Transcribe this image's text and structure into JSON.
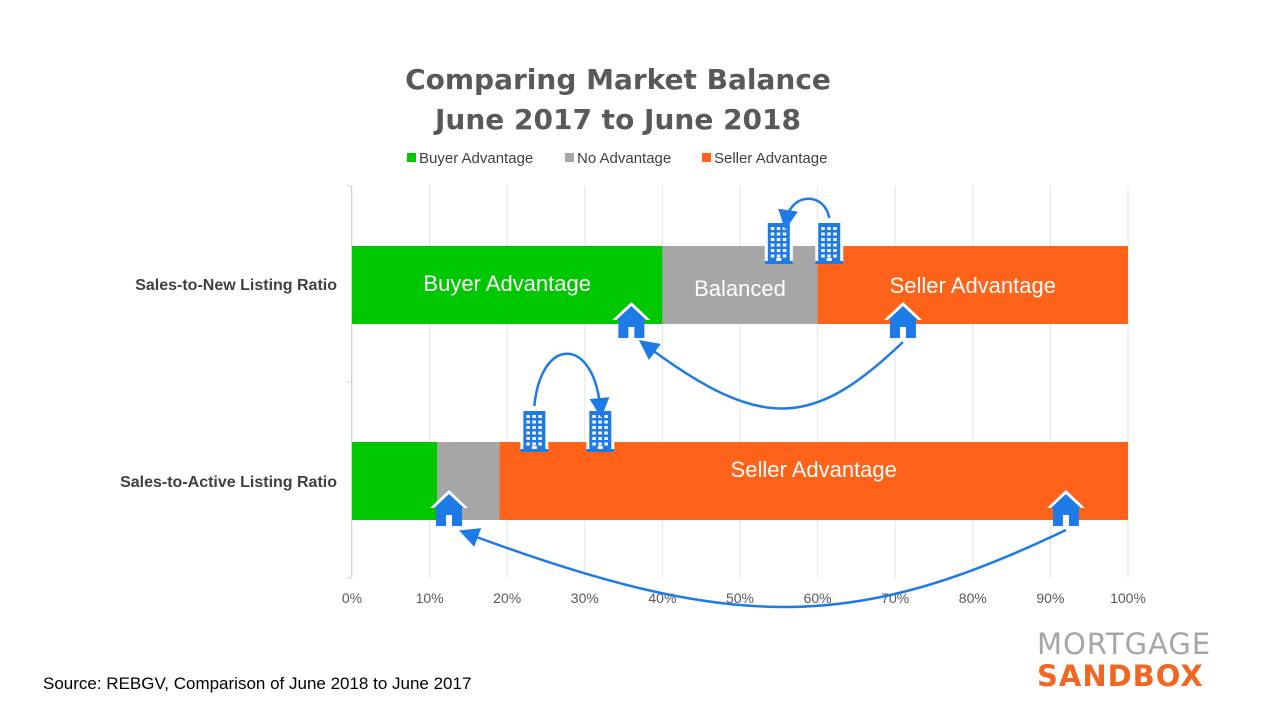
{
  "chart_data": {
    "type": "bar",
    "orientation": "horizontal",
    "stacked": true,
    "title_line1": "Comparing Market Balance",
    "title_line2": "June 2017 to June 2018",
    "categories": [
      "Sales-to-New Listing Ratio",
      "Sales-to-Active Listing Ratio"
    ],
    "series": [
      {
        "name": "Buyer Advantage",
        "color": "#00c800",
        "values": [
          40,
          11
        ]
      },
      {
        "name": "No Advantage",
        "color": "#a6a6a6",
        "values": [
          20,
          8
        ]
      },
      {
        "name": "Seller Advantage",
        "color": "#ff6319",
        "values": [
          40,
          81
        ]
      }
    ],
    "segment_labels": [
      [
        "Buyer Advantage",
        "Balanced",
        "Seller Advantage"
      ],
      [
        "",
        "",
        "Seller Advantage"
      ]
    ],
    "xlim": [
      0,
      100
    ],
    "x_ticks": [
      "0%",
      "10%",
      "20%",
      "30%",
      "40%",
      "50%",
      "60%",
      "70%",
      "80%",
      "90%",
      "100%"
    ],
    "grid": true,
    "legend_position": "top",
    "annotations": {
      "house_icons": [
        {
          "row": 0,
          "value": 36
        },
        {
          "row": 0,
          "value": 71
        },
        {
          "row": 1,
          "value": 12.5
        },
        {
          "row": 1,
          "value": 92
        }
      ],
      "building_icons": [
        {
          "row": 0,
          "value": 55
        },
        {
          "row": 0,
          "value": 61.5
        },
        {
          "row": 1,
          "value": 23.5
        },
        {
          "row": 1,
          "value": 32
        }
      ],
      "arrows": [
        {
          "row": 0,
          "from": 61.5,
          "to": 56,
          "kind": "building"
        },
        {
          "row": 0,
          "from": 71,
          "to": 38,
          "kind": "house"
        },
        {
          "row": 1,
          "from": 23.5,
          "to": 32,
          "kind": "building"
        },
        {
          "row": 1,
          "from": 92,
          "to": 15,
          "kind": "house"
        }
      ],
      "accent_color": "#1e7be6"
    }
  },
  "footer": {
    "source": "Source: REBGV, Comparison of June 2018 to June 2017",
    "logo_line1": "MORTGAGE",
    "logo_line2": "SANDBOX"
  }
}
